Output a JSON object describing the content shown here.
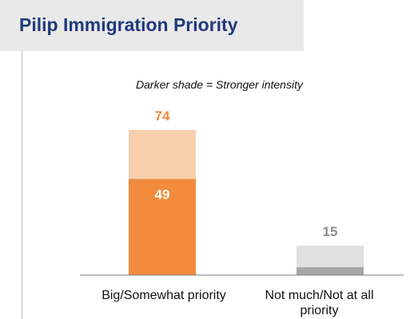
{
  "title": "Pilip Immigration Priority",
  "note": "Darker shade = Stronger intensity",
  "colors": {
    "title_text": "#1f3a7a",
    "title_bg": "#e9e9e9",
    "strong_1": "#f28b3c",
    "total_1": "#f7cfad",
    "strong_2": "#a6a6a6",
    "total_2": "#e0e0e0",
    "label_total_1": "#f28b3c",
    "label_strong_1": "#ffffff",
    "label_total_2": "#8c8c8c"
  },
  "chart_data": {
    "type": "bar",
    "stacked_overlay": true,
    "categories": [
      "Big/Somewhat priority",
      "Not much/Not at all priority"
    ],
    "totals": [
      74,
      15
    ],
    "strong_values": [
      49,
      4
    ],
    "total_labels": [
      "74",
      "15"
    ],
    "strong_labels": [
      "49",
      ""
    ],
    "ylim": [
      0,
      80
    ],
    "grid": false,
    "legend": "none"
  }
}
